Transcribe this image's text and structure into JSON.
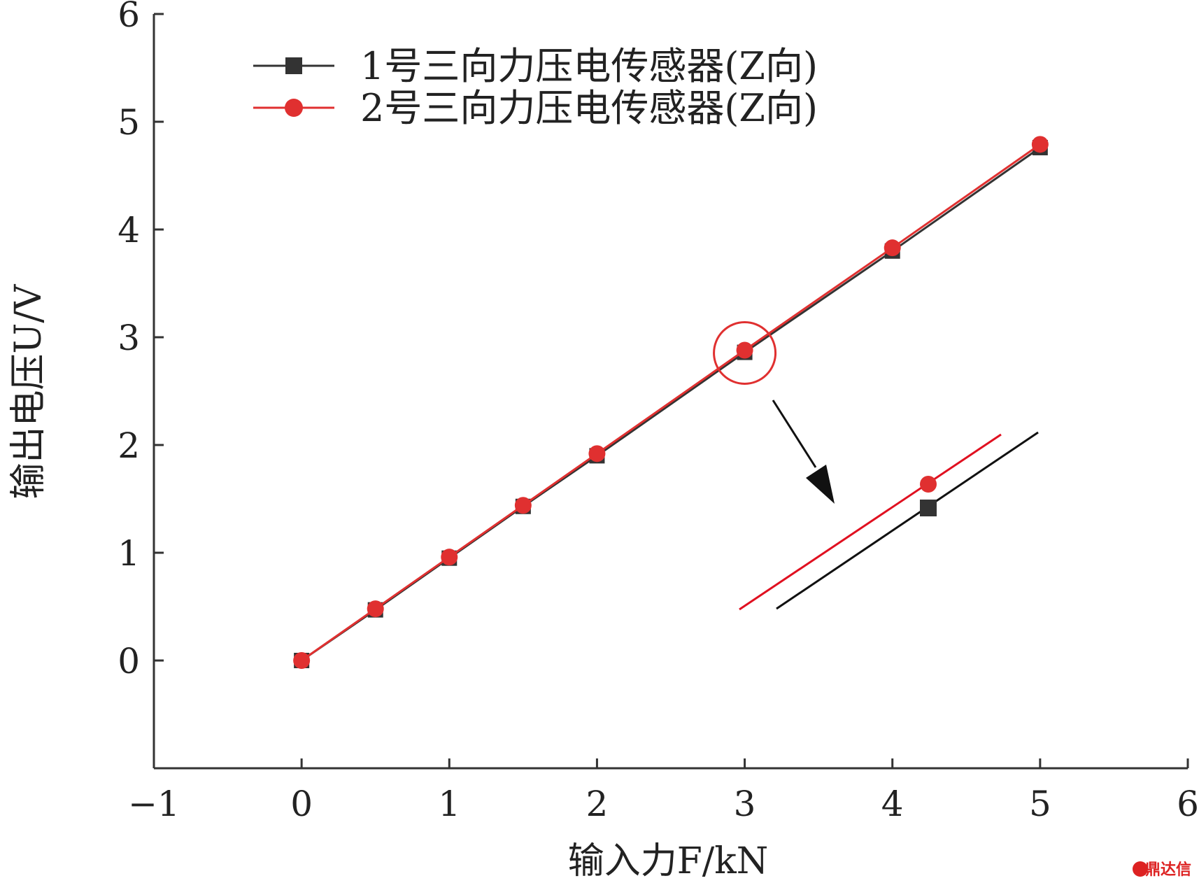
{
  "chart_data": {
    "type": "line",
    "title": "",
    "xlabel": "输入力F/kN",
    "ylabel": "输出电压U/V",
    "xlim": [
      -1,
      6
    ],
    "ylim": [
      -1,
      6
    ],
    "x_ticks": [
      "−1",
      "0",
      "1",
      "2",
      "3",
      "4",
      "5",
      "6"
    ],
    "y_ticks": [
      "0",
      "1",
      "2",
      "3",
      "4",
      "5",
      "6"
    ],
    "grid": false,
    "legend": "top-left",
    "series": [
      {
        "name": "1号三向力压电传感器(Z向)",
        "color": "#333333",
        "marker": "square",
        "x": [
          0,
          0.5,
          1,
          1.5,
          2,
          3,
          4,
          5
        ],
        "y": [
          0,
          0.47,
          0.95,
          1.43,
          1.9,
          2.86,
          3.8,
          4.76
        ]
      },
      {
        "name": "2号三向力压电传感器(Z向)",
        "color": "#e03030",
        "marker": "circle",
        "x": [
          0,
          0.5,
          1,
          1.5,
          2,
          3,
          4,
          5
        ],
        "y": [
          0,
          0.48,
          0.96,
          1.44,
          1.92,
          2.88,
          3.83,
          4.79
        ]
      }
    ],
    "annotation": {
      "highlight_point": [
        3,
        2.88
      ],
      "inset": "zoomed view around x=3"
    }
  },
  "watermark": "鼎达信"
}
